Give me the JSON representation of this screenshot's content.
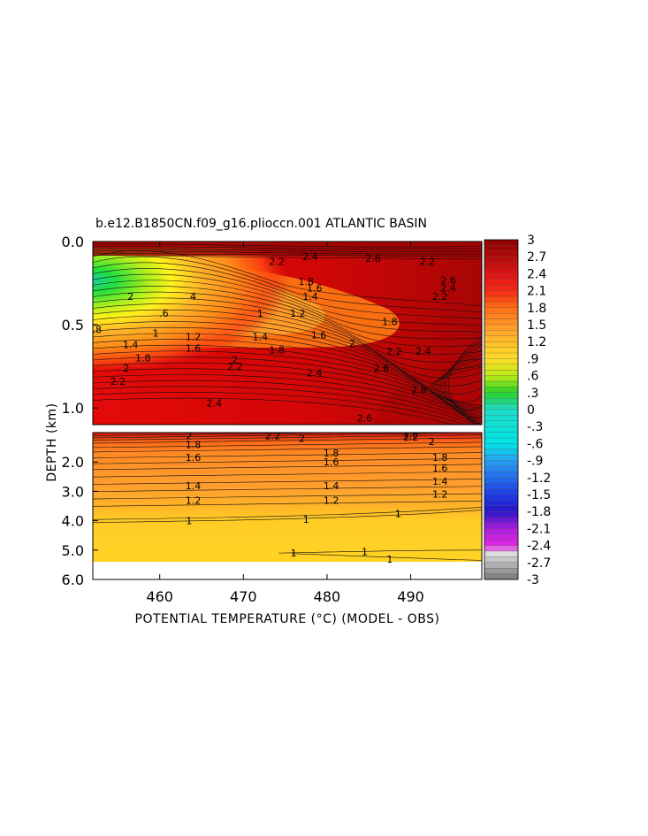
{
  "chart_data": {
    "type": "heatmap",
    "title": "b.e12.B1850CN.f09_g16.plioccn.001 ATLANTIC BASIN",
    "xlabel": "POTENTIAL TEMPERATURE (°C) (MODEL - OBS)",
    "ylabel": "DEPTH (km)",
    "xlim": [
      452,
      498.5
    ],
    "x_ticks": [
      "460",
      "470",
      "480",
      "490"
    ],
    "top_panel": {
      "ylim": [
        0.0,
        1.1
      ],
      "y_ticks": [
        "0.0",
        "0.5",
        "1.0"
      ]
    },
    "bottom_panel": {
      "ylim": [
        1.0,
        6.0
      ],
      "y_ticks": [
        "2.0",
        "3.0",
        "4.0",
        "5.0",
        "6.0"
      ]
    },
    "colorbar": {
      "min": -3,
      "max": 3,
      "labels": [
        "3",
        "2.7",
        "2.4",
        "2.1",
        "1.8",
        "1.5",
        "1.2",
        ".9",
        ".6",
        ".3",
        "0",
        "-.3",
        "-.6",
        "-.9",
        "-1.2",
        "-1.5",
        "-1.8",
        "-2.1",
        "-2.4",
        "-2.7",
        "-3"
      ]
    },
    "contour_labels_top": [
      {
        "text": "2",
        "x": 456.5,
        "y": 0.33
      },
      {
        "text": ".6",
        "x": 460.5,
        "y": 0.43
      },
      {
        "text": ".8",
        "x": 452.5,
        "y": 0.53
      },
      {
        "text": "1",
        "x": 459.5,
        "y": 0.55
      },
      {
        "text": "1.2",
        "x": 464,
        "y": 0.57
      },
      {
        "text": "1.4",
        "x": 456.5,
        "y": 0.62
      },
      {
        "text": "1.6",
        "x": 464,
        "y": 0.64
      },
      {
        "text": "1.8",
        "x": 458,
        "y": 0.7
      },
      {
        "text": "2",
        "x": 456,
        "y": 0.76
      },
      {
        "text": "2.2",
        "x": 455,
        "y": 0.84
      },
      {
        "text": "1.4",
        "x": 472,
        "y": 0.57
      },
      {
        "text": "1.6",
        "x": 479,
        "y": 0.56
      },
      {
        "text": "1.8",
        "x": 474,
        "y": 0.65
      },
      {
        "text": "2",
        "x": 469,
        "y": 0.71
      },
      {
        "text": "2.2",
        "x": 469,
        "y": 0.75
      },
      {
        "text": "2.4",
        "x": 478.5,
        "y": 0.79
      },
      {
        "text": "2",
        "x": 483,
        "y": 0.61
      },
      {
        "text": "2.2",
        "x": 488,
        "y": 0.66
      },
      {
        "text": "2.4",
        "x": 491.5,
        "y": 0.66
      },
      {
        "text": "2.6",
        "x": 486.5,
        "y": 0.76
      },
      {
        "text": "2.8",
        "x": 491,
        "y": 0.89
      },
      {
        "text": "2.4",
        "x": 466.5,
        "y": 0.97
      },
      {
        "text": "2.6",
        "x": 484.5,
        "y": 1.06
      },
      {
        "text": "1.8",
        "x": 487.5,
        "y": 0.48
      },
      {
        "text": "1.2",
        "x": 476.5,
        "y": 0.43
      },
      {
        "text": "1.4",
        "x": 478,
        "y": 0.33
      },
      {
        "text": "1.6",
        "x": 478.5,
        "y": 0.28
      },
      {
        "text": "1.8",
        "x": 477.5,
        "y": 0.24
      },
      {
        "text": "1",
        "x": 472,
        "y": 0.43
      },
      {
        "text": "2.2",
        "x": 474,
        "y": 0.12
      },
      {
        "text": "2.4",
        "x": 478,
        "y": 0.09
      },
      {
        "text": "2.6",
        "x": 485.5,
        "y": 0.1
      },
      {
        "text": "2.2",
        "x": 492,
        "y": 0.12
      },
      {
        "text": "2.6",
        "x": 494.5,
        "y": 0.23
      },
      {
        "text": "2.4",
        "x": 494.5,
        "y": 0.28
      },
      {
        "text": "2.2",
        "x": 493.5,
        "y": 0.33
      },
      {
        "text": "4",
        "x": 464,
        "y": 0.33
      }
    ],
    "contour_labels_bottom": [
      {
        "text": "2",
        "x": 463.5,
        "y": 1.1
      },
      {
        "text": "2.2",
        "x": 473.5,
        "y": 1.1
      },
      {
        "text": "2",
        "x": 477,
        "y": 1.2
      },
      {
        "text": "1.8",
        "x": 464,
        "y": 1.4
      },
      {
        "text": "1.6",
        "x": 464,
        "y": 1.85
      },
      {
        "text": "1.8",
        "x": 480.5,
        "y": 1.7
      },
      {
        "text": "1.6",
        "x": 480.5,
        "y": 2.0
      },
      {
        "text": "1.8",
        "x": 493.5,
        "y": 1.85
      },
      {
        "text": "1.6",
        "x": 493.5,
        "y": 2.2
      },
      {
        "text": "1.4",
        "x": 464,
        "y": 2.8
      },
      {
        "text": "1.4",
        "x": 480.5,
        "y": 2.8
      },
      {
        "text": "1.4",
        "x": 493.5,
        "y": 2.65
      },
      {
        "text": "1.2",
        "x": 464,
        "y": 3.3
      },
      {
        "text": "1.2",
        "x": 480.5,
        "y": 3.3
      },
      {
        "text": "1.2",
        "x": 493.5,
        "y": 3.1
      },
      {
        "text": "1",
        "x": 463.5,
        "y": 4.0
      },
      {
        "text": "1",
        "x": 477.5,
        "y": 3.95
      },
      {
        "text": "1",
        "x": 488.5,
        "y": 3.75
      },
      {
        "text": "1",
        "x": 476,
        "y": 5.1
      },
      {
        "text": "1",
        "x": 484.5,
        "y": 5.05
      },
      {
        "text": "1",
        "x": 487.5,
        "y": 5.3
      },
      {
        "text": "2.2",
        "x": 490,
        "y": 1.15
      },
      {
        "text": "2",
        "x": 492.5,
        "y": 1.3
      },
      {
        "text": "1.8",
        "x": 490,
        "y": 1.05
      }
    ]
  }
}
